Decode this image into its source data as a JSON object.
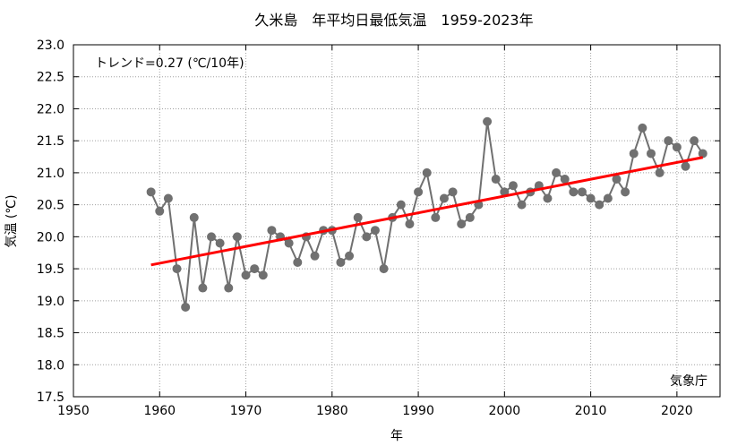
{
  "chart_data": {
    "type": "line",
    "title": "久米島　年平均日最低気温　1959-2023年",
    "xlabel": "年",
    "ylabel": "気温 (℃)",
    "xlim": [
      1950,
      2025
    ],
    "ylim": [
      17.5,
      23.0
    ],
    "x_ticks": [
      "1950",
      "1960",
      "1970",
      "1980",
      "1990",
      "2000",
      "2010",
      "2020"
    ],
    "y_ticks": [
      "17.5",
      "18.0",
      "18.5",
      "19.0",
      "19.5",
      "20.0",
      "20.5",
      "21.0",
      "21.5",
      "22.0",
      "22.5",
      "23.0"
    ],
    "grid": true,
    "colors": {
      "series": "#707070",
      "trend": "#ff0000",
      "grid": "#a0a0a0"
    },
    "series": [
      {
        "x": [
          1959,
          1960,
          1961,
          1962,
          1963,
          1964,
          1965,
          1966,
          1967,
          1968,
          1969,
          1970,
          1971,
          1972,
          1973,
          1974,
          1975,
          1976,
          1977,
          1978,
          1979,
          1980,
          1981,
          1982,
          1983,
          1984,
          1985,
          1986,
          1987,
          1988,
          1989,
          1990,
          1991,
          1992,
          1993,
          1994,
          1995,
          1996,
          1997,
          1998,
          1999,
          2000,
          2001,
          2002,
          2003,
          2004,
          2005,
          2006,
          2007,
          2008,
          2009,
          2010,
          2011,
          2012,
          2013,
          2014,
          2015,
          2016,
          2017,
          2018,
          2019,
          2020,
          2021,
          2022,
          2023
        ],
        "values": [
          20.7,
          20.4,
          20.6,
          19.5,
          18.9,
          20.3,
          19.2,
          20.0,
          19.9,
          19.2,
          20.0,
          19.4,
          19.5,
          19.4,
          20.1,
          20.0,
          19.9,
          19.6,
          20.0,
          19.7,
          20.1,
          20.1,
          19.6,
          19.7,
          20.3,
          20.0,
          20.1,
          19.5,
          20.3,
          20.5,
          20.2,
          20.7,
          21.0,
          20.3,
          20.6,
          20.7,
          20.2,
          20.3,
          20.5,
          21.8,
          20.9,
          20.7,
          20.8,
          20.5,
          20.7,
          20.8,
          20.6,
          21.0,
          20.9,
          20.7,
          20.7,
          20.6,
          20.5,
          20.6,
          20.9,
          20.7,
          21.3,
          21.7,
          21.3,
          21.0,
          21.5,
          21.4,
          21.1,
          21.5,
          21.3
        ]
      }
    ],
    "trend": {
      "label": "トレンド=0.27 (℃/10年)",
      "x": [
        1959,
        2023
      ],
      "values": [
        19.56,
        21.24
      ]
    },
    "source_label": "気象庁"
  }
}
